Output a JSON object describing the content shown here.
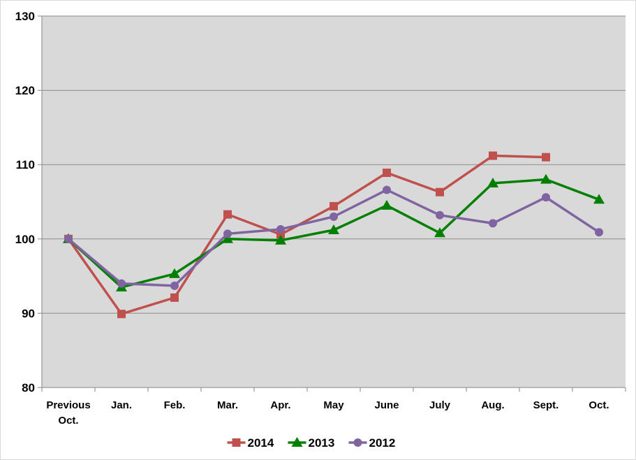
{
  "chart_data": {
    "type": "line",
    "title": "",
    "xlabel": "",
    "ylabel": "",
    "categories": [
      [
        "Previous",
        "Oct."
      ],
      [
        "Jan."
      ],
      [
        "Feb."
      ],
      [
        "Mar."
      ],
      [
        "Apr."
      ],
      [
        "May"
      ],
      [
        "June"
      ],
      [
        "July"
      ],
      [
        "Aug."
      ],
      [
        "Sept."
      ],
      [
        "Oct."
      ]
    ],
    "ylim": [
      80,
      130
    ],
    "yticks": [
      80,
      90,
      100,
      110,
      120,
      130
    ],
    "grid": "horizontal",
    "plot_background": "#d9d9d9",
    "legend_position": "bottom",
    "series": [
      {
        "name": "2014",
        "color": "#c0504d",
        "marker": "square",
        "values": [
          100,
          89.9,
          92.1,
          103.3,
          100.6,
          104.4,
          108.9,
          106.3,
          111.2,
          111.0,
          null
        ]
      },
      {
        "name": "2013",
        "color": "#008000",
        "marker": "triangle",
        "values": [
          100,
          93.5,
          95.3,
          100.0,
          99.8,
          101.2,
          104.5,
          100.8,
          107.5,
          108.0,
          105.3
        ]
      },
      {
        "name": "2012",
        "color": "#8064a2",
        "marker": "circle",
        "values": [
          100,
          94.0,
          93.7,
          100.7,
          101.3,
          103.0,
          106.6,
          103.2,
          102.1,
          105.6,
          100.9
        ]
      }
    ]
  }
}
